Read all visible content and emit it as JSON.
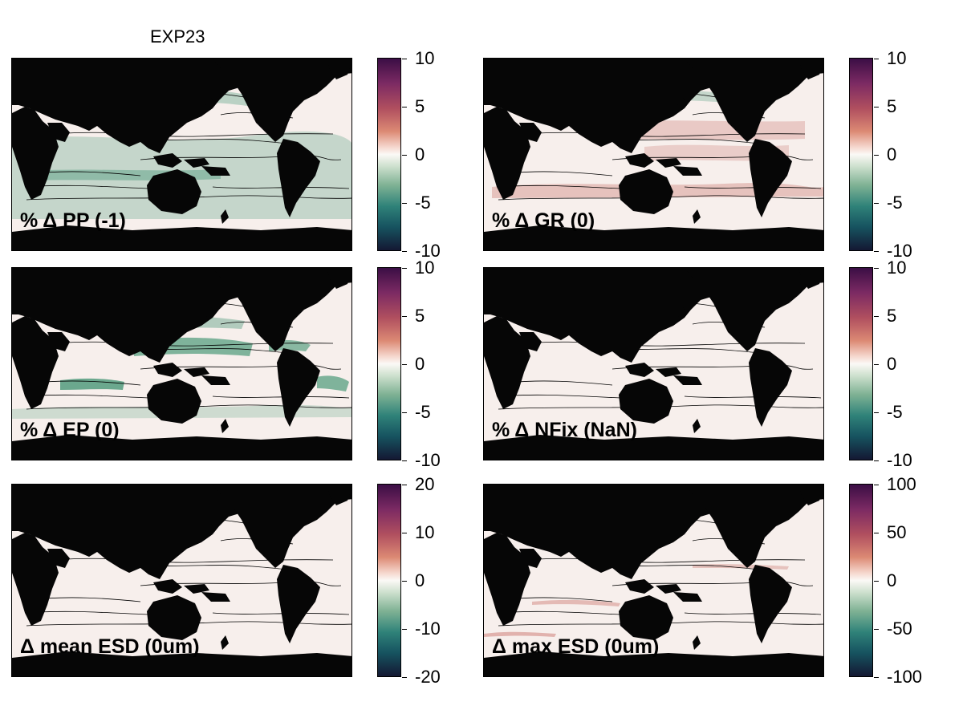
{
  "figure": {
    "title": "EXP23",
    "colors": {
      "land": "#060606",
      "ocean_background": "#f7efec",
      "positive": "#c0584f",
      "negative": "#2f8a66"
    },
    "panels": [
      {
        "id": "pp",
        "label": "% Δ PP (-1)",
        "cbar_ticks": [
          "10",
          "5",
          "0",
          "-5",
          "-10"
        ],
        "anomaly": "negative-widespread"
      },
      {
        "id": "gr",
        "label": "% Δ GR (0)",
        "cbar_ticks": [
          "10",
          "5",
          "0",
          "-5",
          "-10"
        ],
        "anomaly": "positive-bands"
      },
      {
        "id": "ep",
        "label": "% Δ EP (0)",
        "cbar_ticks": [
          "10",
          "5",
          "0",
          "-5",
          "-10"
        ],
        "anomaly": "negative-gyres"
      },
      {
        "id": "nfix",
        "label": "% Δ NFix (NaN)",
        "cbar_ticks": [
          "10",
          "5",
          "0",
          "-5",
          "-10"
        ],
        "anomaly": "none"
      },
      {
        "id": "mean_esd",
        "label": "Δ mean ESD (0um)",
        "cbar_ticks": [
          "20",
          "10",
          "0",
          "-10",
          "-20"
        ],
        "anomaly": "none"
      },
      {
        "id": "max_esd",
        "label": "Δ max ESD (0um)",
        "cbar_ticks": [
          "100",
          "50",
          "0",
          "-50",
          "-100"
        ],
        "anomaly": "faint-streaks"
      }
    ]
  }
}
